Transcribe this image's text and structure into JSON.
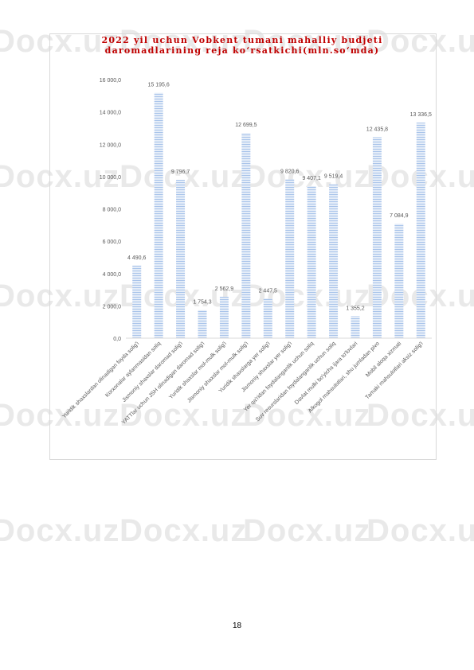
{
  "watermark": "Docx.uz",
  "page_number": "18",
  "colors": {
    "bar_stripe": "#a9c4ea",
    "title": "#c00000",
    "axis": "#d9d9d9",
    "text": "#595959"
  },
  "chart_data": {
    "type": "bar",
    "title_line1": "2022 yil uchun Vobkent tumani mahalliy budjeti",
    "title_line2": "daromadlarining reja ko‘rsatkichi(mln.so‘mda)",
    "xlabel": "",
    "ylabel": "",
    "ylim": [
      0,
      16000
    ],
    "yticks": [
      0,
      2000,
      4000,
      6000,
      8000,
      10000,
      12000,
      14000,
      16000
    ],
    "ytick_labels": [
      "0,0",
      "2 000,0",
      "4 000,0",
      "6 000,0",
      "8 000,0",
      "10 000,0",
      "12 000,0",
      "14 000,0",
      "16 000,0"
    ],
    "grid": false,
    "categories": [
      "Yuridik shaxslardan olinadigan foyda solig'i",
      "Korxonalar aylanmasidan soliq",
      "Jismoniy shaxslar daromad solig'i",
      "YATTlar uchun JSH olinadigan daromad solig'i",
      "Yuridik shaxslar mol-mulk solig'i",
      "Jismoniy shaxslar mol-mulk solig'i",
      "Yuridik shaxslarga yer solig'i",
      "Jismoniy shaxslar yer solig'i",
      "Yer qa'ridan foydalanganlik uchun soliq",
      "Suv resurslaridan foydalanganlik uchun soliq",
      "Davlat mulki bo'yicha ijara to'lovlari",
      "Alkogol mahsulotlari, shu jumladan pivo",
      "Mobil aloqa xizmati",
      "Tamaki mahsulotlari aksiz solig'i"
    ],
    "values": [
      4490.6,
      15195.6,
      9796.7,
      1754.3,
      2562.9,
      12699.5,
      2447.5,
      9820.6,
      9407.1,
      9519.4,
      1355.2,
      12435.8,
      7084.9,
      13336.5
    ],
    "value_labels": [
      "4 490,6",
      "15 195,6",
      "9 796,7",
      "1 754,3",
      "2 562,9",
      "12 699,5",
      "2 447,5",
      "9 820,6",
      "9 407,1",
      "9 519,4",
      "1 355,2",
      "12 435,8",
      "7 084,9",
      "13 336,5"
    ]
  }
}
